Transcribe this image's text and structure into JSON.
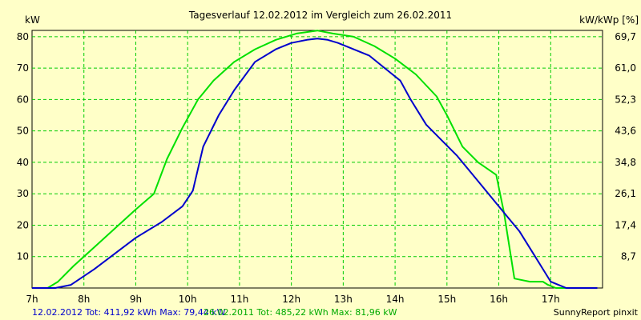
{
  "chart_data": {
    "type": "line",
    "title": "Tagesverlauf 12.02.2012 im Vergleich zum 26.02.2011",
    "ylabel_left": "kW",
    "ylabel_right": "kW/kWp [%]",
    "xlim": [
      7,
      18
    ],
    "ylim": [
      0,
      82
    ],
    "x_ticks": [
      "7h",
      "8h",
      "9h",
      "10h",
      "11h",
      "12h",
      "13h",
      "14h",
      "15h",
      "16h",
      "17h"
    ],
    "y_ticks_left": [
      "10",
      "20",
      "30",
      "40",
      "50",
      "60",
      "70",
      "80"
    ],
    "y_ticks_right": [
      "8,7",
      "17,4",
      "26,1",
      "34,8",
      "43,6",
      "52,3",
      "61,0",
      "69,7"
    ],
    "grid": true,
    "series": [
      {
        "name": "12.02.2012",
        "color": "#0000cc",
        "x": [
          7.0,
          7.45,
          7.75,
          8.2,
          8.6,
          9.0,
          9.5,
          9.9,
          10.1,
          10.3,
          10.6,
          10.9,
          11.3,
          11.7,
          12.0,
          12.3,
          12.5,
          12.7,
          12.9,
          13.2,
          13.5,
          13.8,
          14.1,
          14.3,
          14.6,
          14.9,
          15.2,
          15.6,
          16.0,
          16.4,
          16.7,
          16.85,
          17.0,
          17.15,
          17.3,
          17.9
        ],
        "y": [
          0,
          0,
          1,
          6,
          11,
          16,
          21,
          26,
          31,
          45,
          55,
          63,
          72,
          76,
          78,
          79,
          79.4,
          79,
          78,
          76,
          74,
          70,
          66,
          60,
          52,
          47,
          42,
          34,
          26,
          18,
          10,
          6,
          2,
          1,
          0,
          0
        ]
      },
      {
        "name": "26.02.2011",
        "color": "#00e000",
        "x": [
          7.0,
          7.3,
          7.5,
          7.8,
          8.2,
          8.6,
          9.0,
          9.35,
          9.6,
          9.9,
          10.2,
          10.5,
          10.9,
          11.3,
          11.7,
          12.1,
          12.5,
          12.8,
          13.2,
          13.6,
          14.0,
          14.4,
          14.8,
          15.0,
          15.3,
          15.6,
          15.95,
          16.1,
          16.3,
          16.6,
          16.85,
          16.95,
          17.1,
          17.3,
          17.9
        ],
        "y": [
          0,
          0,
          2,
          7,
          13,
          19,
          25,
          30,
          41,
          51,
          60,
          66,
          72,
          76,
          79,
          81,
          81.96,
          81,
          80,
          77,
          73,
          68,
          61,
          55,
          45,
          40,
          36,
          24,
          3,
          2,
          2,
          1,
          0,
          0,
          0
        ]
      }
    ],
    "footer": {
      "blue": "12.02.2012 Tot: 411,92 kWh Max: 79,44 kW",
      "green": "26.02.2011 Tot: 485,22 kWh Max: 81,96 kW",
      "right": "SunnyReport pinxit"
    }
  },
  "colors": {
    "background": "#ffffc8",
    "grid": "#00cc00",
    "axis": "#000000"
  }
}
